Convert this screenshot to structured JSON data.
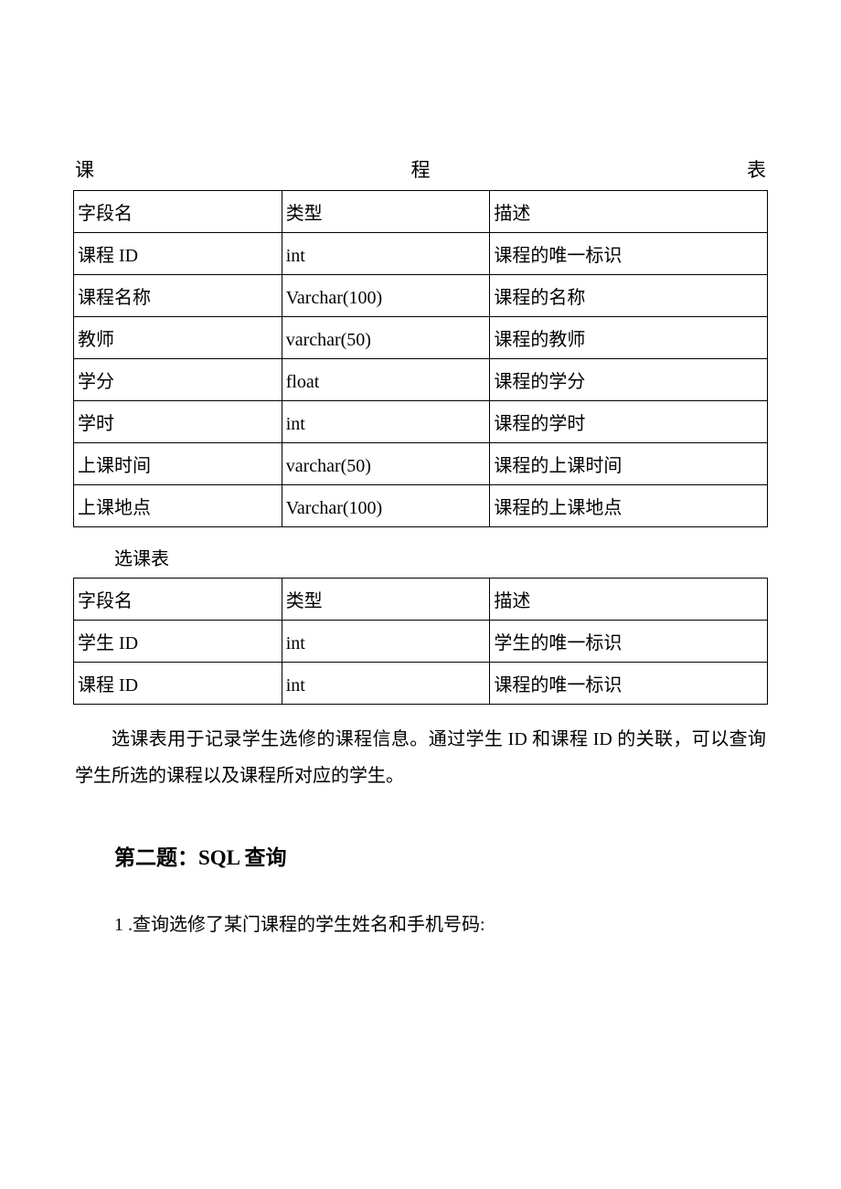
{
  "title1": {
    "char1": "课",
    "char2": "程",
    "char3": "表"
  },
  "table1": {
    "columns": [
      "字段名",
      "类型",
      "描述"
    ],
    "rows": [
      [
        "课程 ID",
        "int",
        "课程的唯一标识"
      ],
      [
        "课程名称",
        "Varchar(100)",
        "课程的名称"
      ],
      [
        "教师",
        "varchar(50)",
        "课程的教师"
      ],
      [
        "学分",
        "float",
        "课程的学分"
      ],
      [
        "学时",
        "int",
        "课程的学时"
      ],
      [
        "上课时间",
        "varchar(50)",
        "课程的上课时间"
      ],
      [
        "上课地点",
        "Varchar(100)",
        "课程的上课地点"
      ]
    ]
  },
  "subtitle2": "选课表",
  "table2": {
    "columns": [
      "字段名",
      "类型",
      "描述"
    ],
    "rows": [
      [
        "学生 ID",
        "int",
        "学生的唯一标识"
      ],
      [
        "课程 ID",
        "int",
        "课程的唯一标识"
      ]
    ]
  },
  "paragraph": "选课表用于记录学生选修的课程信息。通过学生 ID 和课程 ID 的关联，可以查询学生所选的课程以及课程所对应的学生。",
  "heading": "第二题：SQL 查询",
  "question1": "1 .查询选修了某门课程的学生姓名和手机号码:"
}
